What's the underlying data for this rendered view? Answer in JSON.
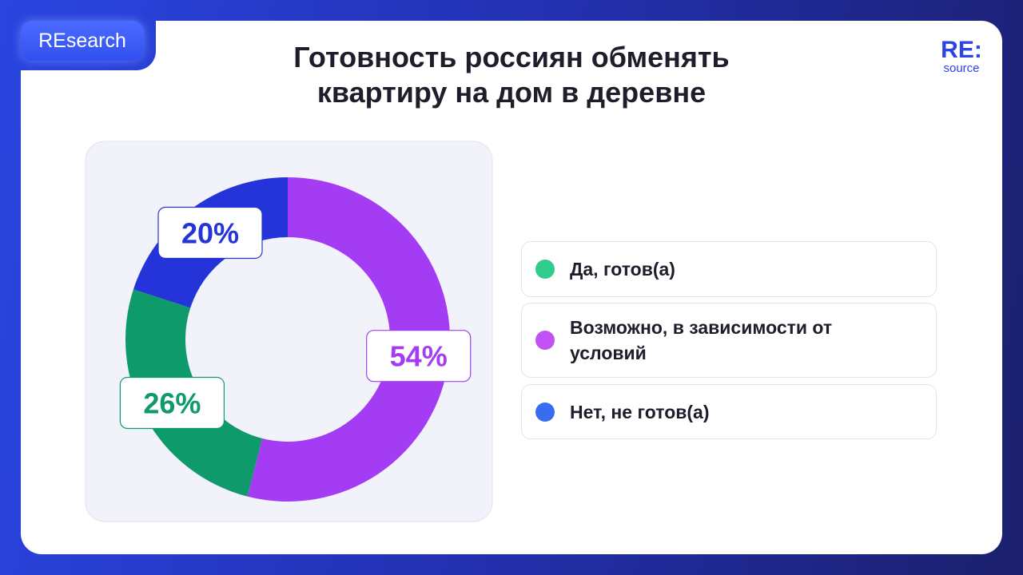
{
  "header": {
    "badge": "REsearch",
    "logo": "RE:",
    "logo_sub": "source"
  },
  "chart_data": {
    "type": "donut",
    "title": "Готовность россиян обменять квартиру на дом в деревне",
    "categories": [
      "Возможно, в зависимости от условий",
      "Да, готов(а)",
      "Нет, не готов(а)"
    ],
    "values": [
      54,
      26,
      20
    ],
    "value_labels": [
      "54%",
      "26%",
      "20%"
    ],
    "colors": [
      "#a43cf3",
      "#0e9a6b",
      "#2534d8"
    ],
    "legend_colors": [
      "#c251f5",
      "#2fcc8b",
      "#3a6cf0"
    ]
  }
}
